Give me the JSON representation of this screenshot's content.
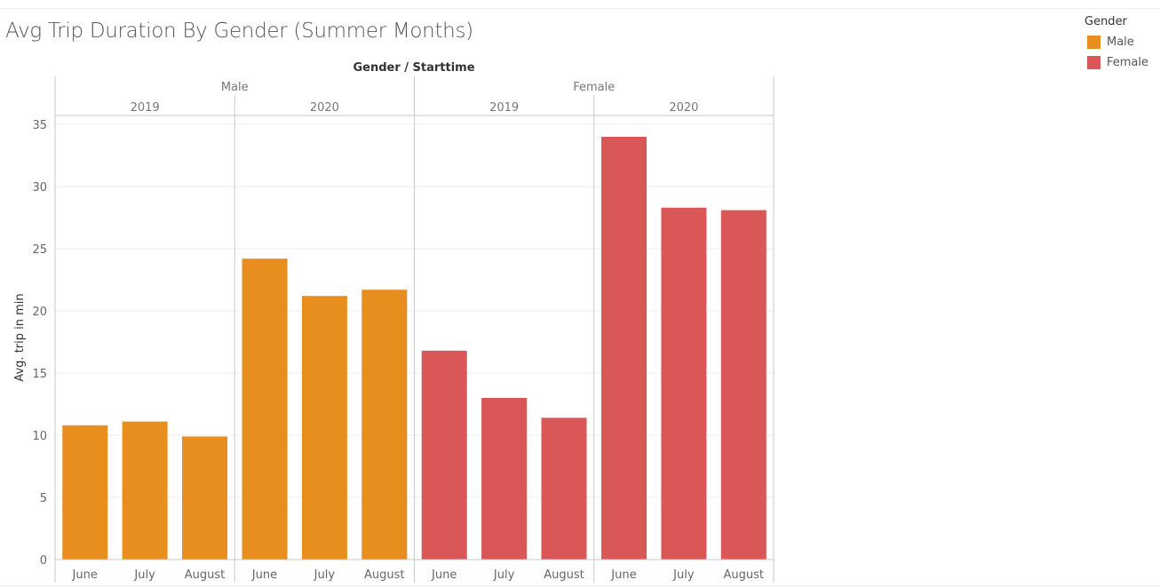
{
  "chart_data": {
    "type": "bar",
    "title": "Avg Trip Duration By Gender (Summer Months)",
    "header_label": "Gender / Starttime",
    "ylabel": "Avg. trip in min",
    "ylim": [
      0,
      35
    ],
    "yticks": [
      0,
      5,
      10,
      15,
      20,
      25,
      30,
      35
    ],
    "grid": true,
    "legend": {
      "title": "Gender",
      "placement": "top-right",
      "items": [
        {
          "label": "Male",
          "color": "#e88e1e"
        },
        {
          "label": "Female",
          "color": "#d95757"
        }
      ]
    },
    "groups": [
      {
        "gender": "Male",
        "color": "#e88e1e",
        "years": [
          {
            "year": "2019",
            "months": [
              "June",
              "July",
              "August"
            ],
            "values": [
              10.8,
              11.1,
              9.9
            ]
          },
          {
            "year": "2020",
            "months": [
              "June",
              "July",
              "August"
            ],
            "values": [
              24.2,
              21.2,
              21.7
            ]
          }
        ]
      },
      {
        "gender": "Female",
        "color": "#d95757",
        "years": [
          {
            "year": "2019",
            "months": [
              "June",
              "July",
              "August"
            ],
            "values": [
              16.8,
              13.0,
              11.4
            ]
          },
          {
            "year": "2020",
            "months": [
              "June",
              "July",
              "August"
            ],
            "values": [
              34.0,
              28.3,
              28.1
            ]
          }
        ]
      }
    ]
  }
}
